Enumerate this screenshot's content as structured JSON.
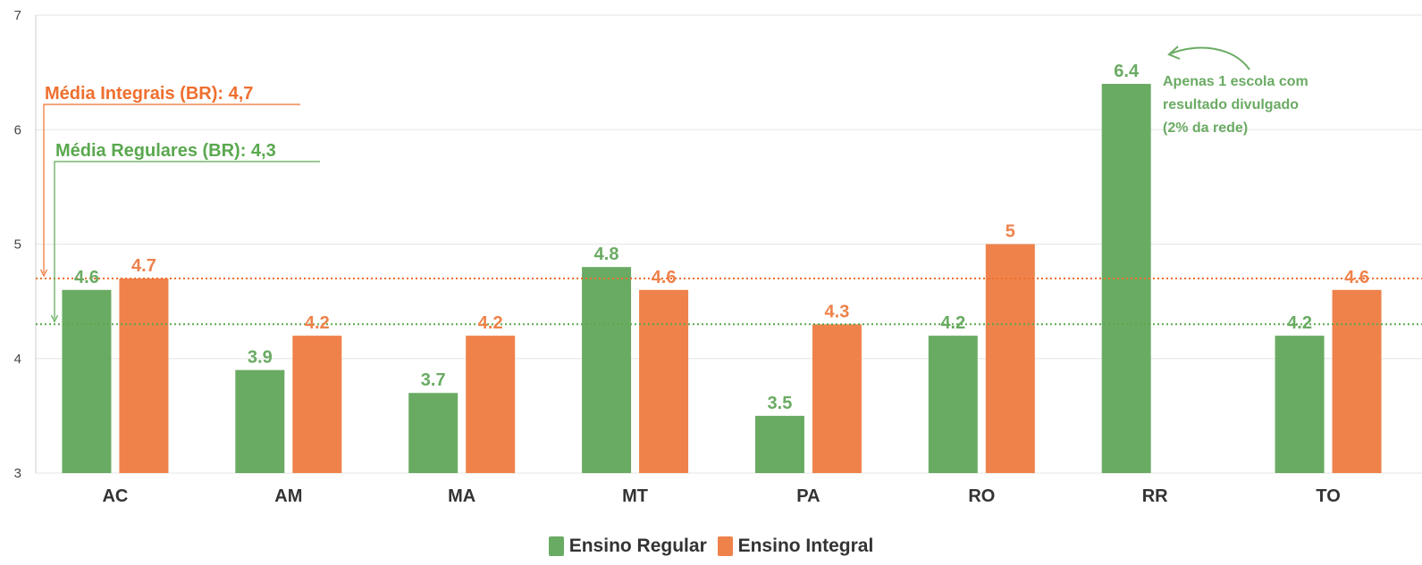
{
  "chart_data": {
    "type": "bar",
    "categories": [
      "AC",
      "AM",
      "MA",
      "MT",
      "PA",
      "RO",
      "RR",
      "TO"
    ],
    "series": [
      {
        "name": "Ensino Regular",
        "color": "#6aab63",
        "values": [
          4.6,
          3.9,
          3.7,
          4.8,
          3.5,
          4.2,
          6.4,
          4.2
        ],
        "labels": [
          "4.6",
          "3.9",
          "3.7",
          "4.8",
          "3.5",
          "4.2",
          "6.4",
          "4.2"
        ]
      },
      {
        "name": "Ensino Integral",
        "color": "#ef824b",
        "values": [
          4.7,
          4.2,
          4.2,
          4.6,
          4.3,
          5.0,
          null,
          4.6
        ],
        "labels": [
          "4.7",
          "4.2",
          "4.2",
          "4.6",
          "4.3",
          "5",
          "",
          "4.6"
        ]
      }
    ],
    "ylim": [
      3,
      7
    ],
    "yticks": [
      "3",
      "4",
      "5",
      "6",
      "7"
    ],
    "grid": true,
    "legend_position": "bottom",
    "reference_lines": [
      {
        "label": "Média Integrais (BR): 4,7",
        "value": 4.7,
        "color": "#ef6f2e"
      },
      {
        "label": "Média Regulares (BR): 4,3",
        "value": 4.3,
        "color": "#5aa84f"
      }
    ],
    "annotations": [
      {
        "text_lines": [
          "Apenas 1 escola com",
          "resultado divulgado",
          "(2% da rede)"
        ],
        "target": "RR",
        "color": "#6aab63"
      }
    ]
  }
}
